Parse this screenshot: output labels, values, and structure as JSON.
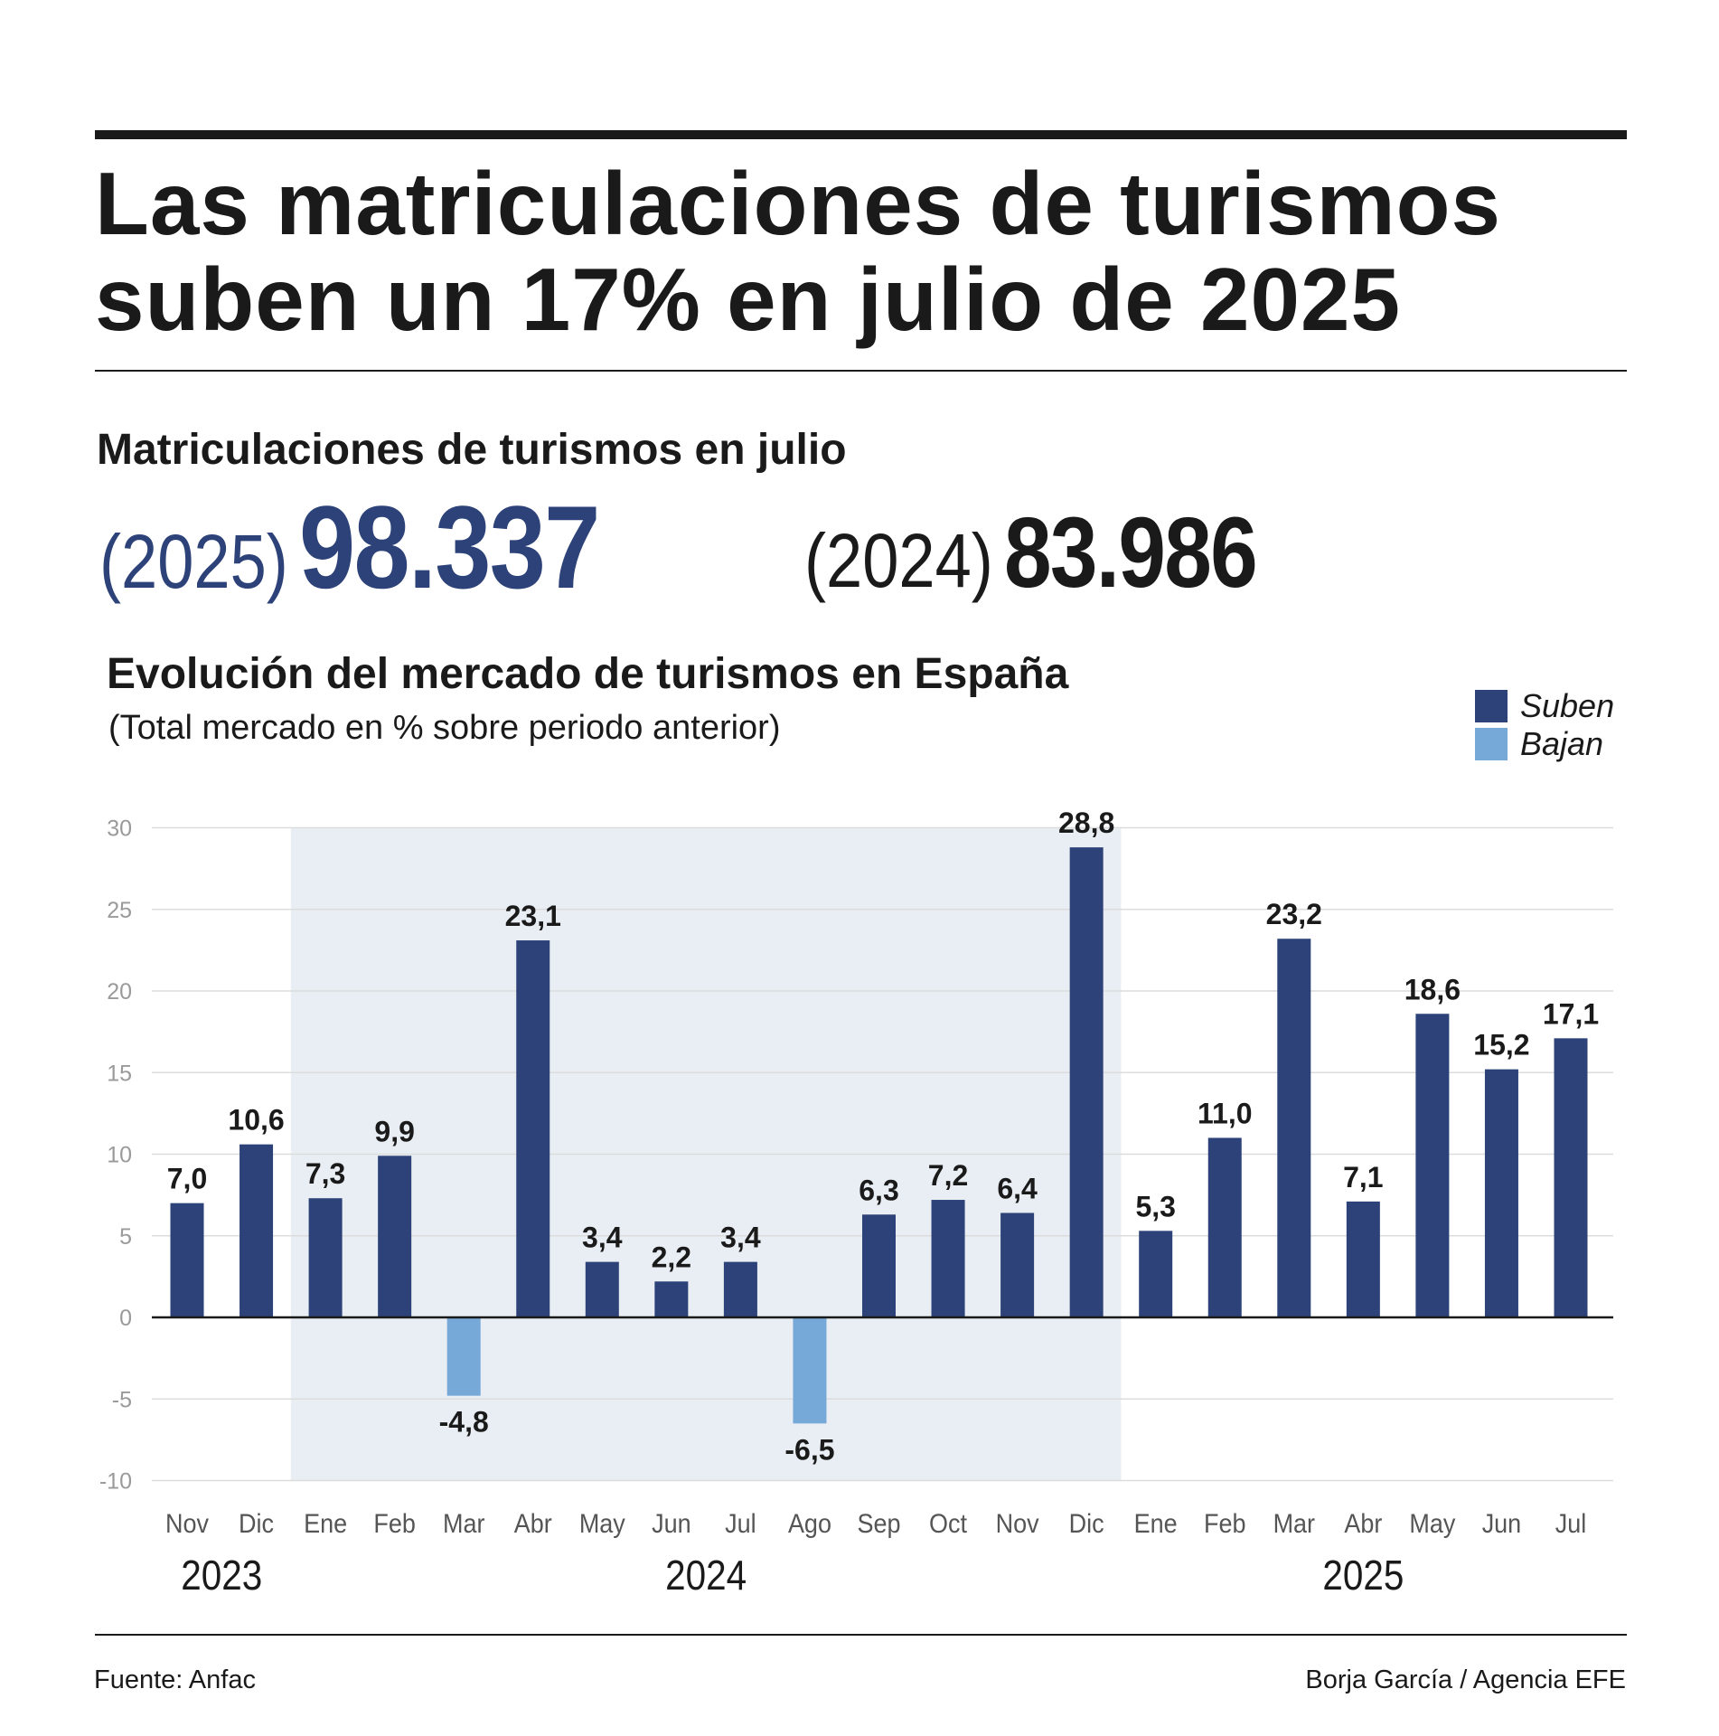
{
  "headline": {
    "line1": "Las matriculaciones de turismos",
    "line2": "suben un 17% en julio de 2025"
  },
  "registrations": {
    "title": "Matriculaciones de turismos en julio",
    "current": {
      "year_label": "(2025)",
      "value": "98.337"
    },
    "previous": {
      "year_label": "(2024)",
      "value": "83.986"
    }
  },
  "colors": {
    "up": "#2c4278",
    "down": "#76a8d8",
    "highlight_band": "#e8eef3",
    "grid": "#dcdcdc",
    "text": "#1a1a1a"
  },
  "chart_data": {
    "type": "bar",
    "title": "Evolución del mercado de turismos en España",
    "subtitle": "(Total mercado en % sobre periodo anterior)",
    "legend": [
      {
        "key": "up",
        "label": "Suben"
      },
      {
        "key": "down",
        "label": "Bajan"
      }
    ],
    "legend_position": "top-right",
    "categories": [
      "Nov",
      "Dic",
      "Ene",
      "Feb",
      "Mar",
      "Abr",
      "May",
      "Jun",
      "Jul",
      "Ago",
      "Sep",
      "Oct",
      "Nov",
      "Dic",
      "Ene",
      "Feb",
      "Mar",
      "Abr",
      "May",
      "Jun",
      "Jul"
    ],
    "values": [
      7.0,
      10.6,
      7.3,
      9.9,
      -4.8,
      23.1,
      3.4,
      2.2,
      3.4,
      -6.5,
      6.3,
      7.2,
      6.4,
      28.8,
      5.3,
      11.0,
      23.2,
      7.1,
      18.6,
      15.2,
      17.1
    ],
    "value_labels": [
      "7,0",
      "10,6",
      "7,3",
      "9,9",
      "-4,8",
      "23,1",
      "3,4",
      "2,2",
      "3,4",
      "-6,5",
      "6,3",
      "7,2",
      "6,4",
      "28,8",
      "5,3",
      "11,0",
      "23,2",
      "7,1",
      "18,6",
      "15,2",
      "17,1"
    ],
    "years": [
      {
        "label": "2023",
        "start": 0,
        "end": 1
      },
      {
        "label": "2024",
        "start": 2,
        "end": 13
      },
      {
        "label": "2025",
        "start": 14,
        "end": 20
      }
    ],
    "highlight_year": "2024",
    "yticks": [
      30,
      25,
      20,
      15,
      10,
      5,
      0,
      -5,
      -10
    ],
    "ylim": [
      -10,
      30
    ],
    "grid": true
  },
  "footer": {
    "source": "Fuente: Anfac",
    "credit": "Borja García / Agencia EFE"
  }
}
